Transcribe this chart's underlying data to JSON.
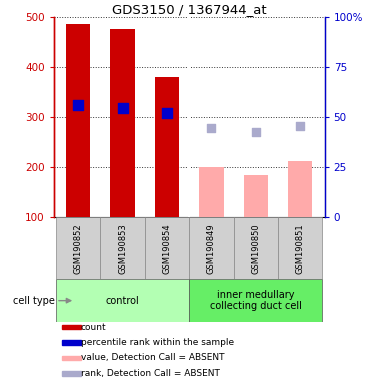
{
  "title": "GDS3150 / 1367944_at",
  "samples": [
    "GSM190852",
    "GSM190853",
    "GSM190854",
    "GSM190849",
    "GSM190850",
    "GSM190851"
  ],
  "groups": [
    {
      "name": "control",
      "color": "#b3ffb3",
      "start": 0,
      "end": 2
    },
    {
      "name": "inner medullary\ncollecting duct cell",
      "color": "#66ee66",
      "start": 3,
      "end": 5
    }
  ],
  "bar_values": [
    487,
    477,
    381,
    200,
    184,
    213
  ],
  "bar_colors": [
    "#cc0000",
    "#cc0000",
    "#cc0000",
    "#ffaaaa",
    "#ffaaaa",
    "#ffaaaa"
  ],
  "percentile_ranks": [
    325,
    318,
    308,
    null,
    null,
    null
  ],
  "rank_absent": [
    null,
    null,
    null,
    278,
    270,
    283
  ],
  "ylim_left": [
    100,
    500
  ],
  "ylim_right": [
    0,
    100
  ],
  "yticks_left": [
    100,
    200,
    300,
    400,
    500
  ],
  "yticks_right": [
    0,
    25,
    50,
    75,
    100
  ],
  "ytick_labels_right": [
    "0",
    "25",
    "50",
    "75",
    "100%"
  ],
  "left_axis_color": "#cc0000",
  "right_axis_color": "#0000cc",
  "bar_width": 0.55,
  "percentile_color": "#0000cc",
  "rank_absent_color": "#aaaacc",
  "cell_type_label": "cell type",
  "legend_items": [
    {
      "label": "count",
      "color": "#cc0000"
    },
    {
      "label": "percentile rank within the sample",
      "color": "#0000cc"
    },
    {
      "label": "value, Detection Call = ABSENT",
      "color": "#ffaaaa"
    },
    {
      "label": "rank, Detection Call = ABSENT",
      "color": "#aaaacc"
    }
  ]
}
